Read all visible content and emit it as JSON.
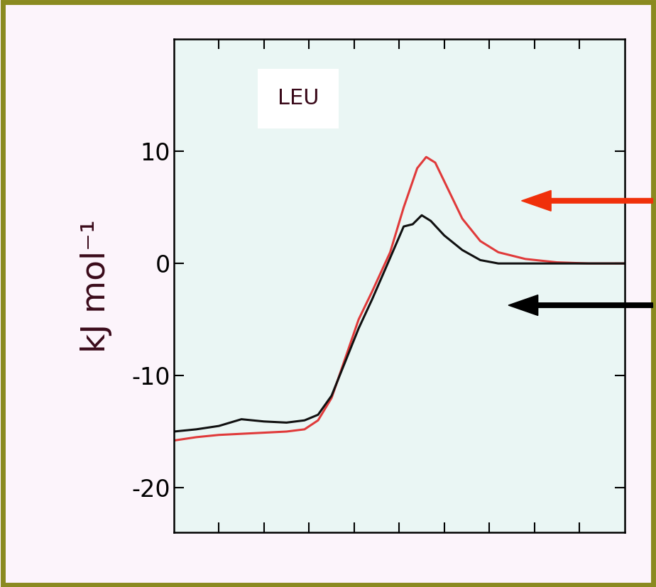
{
  "chart_data": {
    "type": "line",
    "title": "LEU",
    "y_label": "kJ mol⁻¹",
    "xlim": [
      0,
      10
    ],
    "xticks": [
      1,
      2,
      3,
      4,
      5,
      6,
      7,
      8,
      9
    ],
    "ylim": [
      -24,
      20
    ],
    "yticks": [
      -20,
      -10,
      0,
      10
    ],
    "tick_labels": "y",
    "grid": false,
    "series": [
      {
        "name": null,
        "color": "#e03a3a",
        "x": [
          0,
          0.5,
          1,
          1.5,
          2,
          2.5,
          2.9,
          3.2,
          3.5,
          3.8,
          4.1,
          4.4,
          4.8,
          5.1,
          5.4,
          5.6,
          5.8,
          6.1,
          6.4,
          6.8,
          7.2,
          7.8,
          8.5,
          9.2,
          10
        ],
        "values": [
          -15.8,
          -15.5,
          -15.3,
          -15.2,
          -15.1,
          -15.0,
          -14.8,
          -14.0,
          -12.0,
          -8.5,
          -5.0,
          -2.5,
          1.0,
          5.0,
          8.5,
          9.5,
          9.0,
          6.5,
          4.0,
          2.0,
          1.0,
          0.4,
          0.1,
          0,
          0
        ]
      },
      {
        "name": null,
        "color": "#101010",
        "x": [
          0,
          0.5,
          1,
          1.5,
          2,
          2.5,
          2.9,
          3.2,
          3.5,
          3.8,
          4.1,
          4.4,
          4.8,
          5.1,
          5.3,
          5.5,
          5.7,
          6.0,
          6.4,
          6.8,
          7.2,
          8,
          9,
          10
        ],
        "values": [
          -15.0,
          -14.8,
          -14.5,
          -13.9,
          -14.1,
          -14.2,
          -14.0,
          -13.5,
          -11.8,
          -8.8,
          -5.8,
          -3.2,
          0.5,
          3.3,
          3.5,
          4.3,
          3.8,
          2.5,
          1.2,
          0.3,
          0,
          0,
          0,
          0
        ]
      }
    ]
  }
}
